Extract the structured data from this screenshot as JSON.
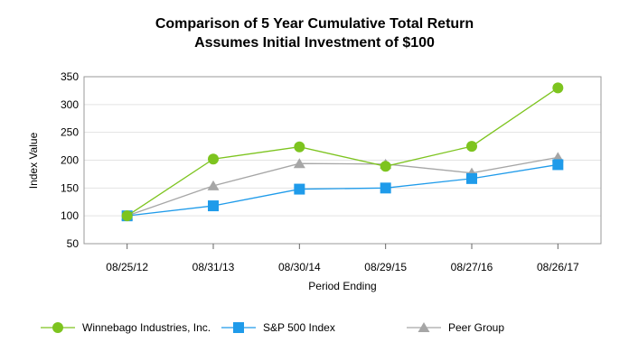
{
  "chart_data": {
    "type": "line",
    "title": "Comparison of 5 Year Cumulative Total Return",
    "subtitle": "Assumes Initial Investment of $100",
    "xlabel": "Period Ending",
    "ylabel": "Index Value",
    "categories": [
      "08/25/12",
      "08/31/13",
      "08/30/14",
      "08/29/15",
      "08/27/16",
      "08/26/17"
    ],
    "ylim": [
      50,
      350
    ],
    "yticks": [
      50,
      100,
      150,
      200,
      250,
      300,
      350
    ],
    "grid": true,
    "legend_position": "bottom",
    "series": [
      {
        "name": "Winnebago Industries, Inc.",
        "values": [
          100,
          202,
          224,
          189,
          225,
          330
        ],
        "color": "#7dc41f",
        "marker": "circle"
      },
      {
        "name": "S&P 500 Index",
        "values": [
          100,
          118,
          148,
          150,
          167,
          192
        ],
        "color": "#1f9bea",
        "marker": "square"
      },
      {
        "name": "Peer Group",
        "values": [
          100,
          154,
          194,
          193,
          177,
          205
        ],
        "color": "#a6a6a6",
        "marker": "triangle"
      }
    ]
  }
}
